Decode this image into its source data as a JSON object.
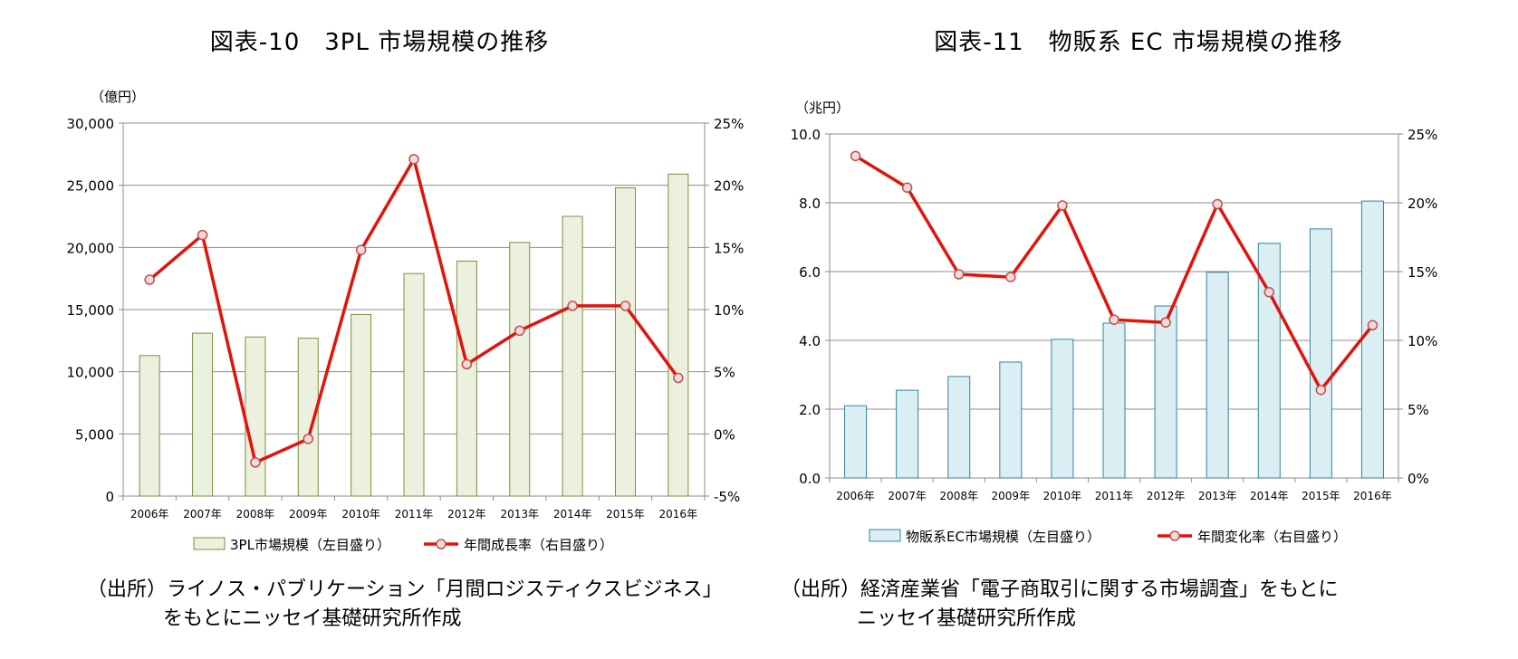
{
  "charts": [
    {
      "title": "図表-10　3PL 市場規模の推移",
      "source_line1": "（出所）ライノス・パブリケーション「月間ロジスティクスビジネス」",
      "source_line2": "をもとにニッセイ基礎研究所作成"
    },
    {
      "title": "図表-11　物販系 EC 市場規模の推移",
      "source_line1": "（出所）経済産業省「電子商取引に関する市場調査」をもとに",
      "source_line2": "ニッセイ基礎研究所作成"
    }
  ],
  "chart_data": [
    {
      "type": "bar",
      "categories": [
        "2006年",
        "2007年",
        "2008年",
        "2009年",
        "2010年",
        "2011年",
        "2012年",
        "2013年",
        "2014年",
        "2015年",
        "2016年"
      ],
      "y_left_unit": "（億円）",
      "y_left_ticks": [
        "0",
        "5,000",
        "10,000",
        "15,000",
        "20,000",
        "25,000",
        "30,000"
      ],
      "y_left_range": [
        0,
        30000
      ],
      "y_right_ticks": [
        "-5%",
        "0%",
        "5%",
        "10%",
        "15%",
        "20%",
        "25%"
      ],
      "y_right_range": [
        -5,
        25
      ],
      "grid": true,
      "legend_position": "bottom",
      "series": [
        {
          "name": "3PL市場規模（左目盛り）",
          "type": "bar",
          "axis": "left",
          "color": "#ebf1de",
          "stroke": "#77933c",
          "values": [
            11300,
            13100,
            12800,
            12700,
            14600,
            17900,
            18900,
            20400,
            22500,
            24800,
            25900
          ]
        },
        {
          "name": "年間成長率（右目盛り）",
          "type": "line",
          "axis": "right",
          "color": "#e3120b",
          "marker_fill": "#f2dcdb",
          "values": [
            12.4,
            16.0,
            -2.3,
            -0.4,
            14.8,
            22.1,
            5.6,
            8.3,
            10.3,
            10.3,
            4.5
          ]
        }
      ]
    },
    {
      "type": "bar",
      "categories": [
        "2006年",
        "2007年",
        "2008年",
        "2009年",
        "2010年",
        "2011年",
        "2012年",
        "2013年",
        "2014年",
        "2015年",
        "2016年"
      ],
      "y_left_unit": "（兆円）",
      "y_left_ticks": [
        "0.0",
        "2.0",
        "4.0",
        "6.0",
        "8.0",
        "10.0"
      ],
      "y_left_range": [
        0,
        10
      ],
      "y_right_ticks": [
        "0%",
        "5%",
        "10%",
        "15%",
        "20%",
        "25%"
      ],
      "y_right_range": [
        0,
        25
      ],
      "grid": true,
      "legend_position": "bottom",
      "series": [
        {
          "name": "物販系EC市場規模（左目盛り）",
          "type": "bar",
          "axis": "left",
          "color": "#dbeef4",
          "stroke": "#31859c",
          "values": [
            2.1,
            2.55,
            2.95,
            3.37,
            4.03,
            4.5,
            5.0,
            5.98,
            6.82,
            7.24,
            8.05
          ]
        },
        {
          "name": "年間変化率（右目盛り）",
          "type": "line",
          "axis": "right",
          "color": "#e3120b",
          "marker_fill": "#f2dcdb",
          "values": [
            23.4,
            21.1,
            14.8,
            14.6,
            19.8,
            11.5,
            11.3,
            19.9,
            13.5,
            6.4,
            11.1
          ]
        }
      ]
    }
  ]
}
